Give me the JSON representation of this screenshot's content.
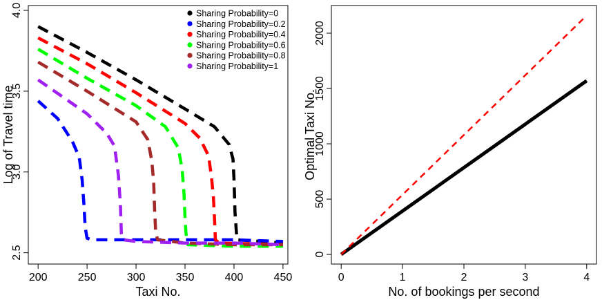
{
  "chart_data": [
    {
      "type": "line",
      "title": "",
      "xlabel": "Taxi No.",
      "ylabel": "Log of Travel time",
      "xlim": [
        190,
        455
      ],
      "ylim": [
        2.43,
        4.03
      ],
      "xticks": [
        200,
        250,
        300,
        350,
        400,
        450
      ],
      "yticks": [
        2.5,
        3.0,
        3.5,
        4.0
      ],
      "xtick_labels": [
        "200",
        "250",
        "300",
        "350",
        "400",
        "450"
      ],
      "ytick_labels": [
        "2.5",
        "3.0",
        "3.5",
        "4.0"
      ],
      "grid": false,
      "legend_position": "top-right",
      "line_style": "dashed",
      "series": [
        {
          "name": "Sharing Probability=0",
          "color": "#000000",
          "x": [
            200,
            250,
            300,
            350,
            380,
            395,
            399,
            400,
            401,
            403,
            450
          ],
          "y": [
            3.9,
            3.74,
            3.57,
            3.39,
            3.28,
            3.17,
            3.08,
            2.95,
            2.75,
            2.58,
            2.56
          ]
        },
        {
          "name": "Sharing Probability=0.2",
          "color": "#0000ff",
          "x": [
            200,
            220,
            235,
            242,
            245,
            247,
            248,
            250,
            255,
            300,
            350,
            400,
            450
          ],
          "y": [
            3.44,
            3.33,
            3.19,
            3.09,
            2.95,
            2.78,
            2.66,
            2.59,
            2.58,
            2.58,
            2.58,
            2.58,
            2.57
          ]
        },
        {
          "name": "Sharing Probability=0.4",
          "color": "#ff0000",
          "x": [
            200,
            250,
            300,
            350,
            365,
            374,
            377,
            379,
            380,
            381,
            385,
            450
          ],
          "y": [
            3.83,
            3.67,
            3.49,
            3.3,
            3.21,
            3.1,
            2.97,
            2.84,
            2.72,
            2.58,
            2.56,
            2.55
          ]
        },
        {
          "name": "Sharing Probability=0.6",
          "color": "#00ff00",
          "x": [
            200,
            250,
            300,
            330,
            343,
            347,
            349,
            350,
            351,
            353,
            400,
            450
          ],
          "y": [
            3.76,
            3.58,
            3.41,
            3.28,
            3.15,
            3.02,
            2.86,
            2.72,
            2.62,
            2.55,
            2.54,
            2.54
          ]
        },
        {
          "name": "Sharing Probability=0.8",
          "color": "#a52a2a",
          "x": [
            200,
            250,
            300,
            312,
            316,
            318,
            319,
            320,
            322,
            350,
            400,
            450
          ],
          "y": [
            3.68,
            3.5,
            3.31,
            3.2,
            3.07,
            2.94,
            2.76,
            2.63,
            2.58,
            2.56,
            2.55,
            2.55
          ]
        },
        {
          "name": "Sharing Probability=1",
          "color": "#a020f0",
          "x": [
            200,
            250,
            270,
            278,
            282,
            284,
            285,
            287,
            300,
            350,
            400,
            450
          ],
          "y": [
            3.57,
            3.36,
            3.24,
            3.16,
            2.98,
            2.8,
            2.62,
            2.58,
            2.57,
            2.56,
            2.56,
            2.55
          ]
        }
      ]
    },
    {
      "type": "line",
      "title": "",
      "xlabel": "No. of bookings per second",
      "ylabel": "Optimal Taxi No.",
      "xlim": [
        -0.16,
        4.16
      ],
      "ylim": [
        -87,
        2250
      ],
      "xticks": [
        0,
        1,
        2,
        3,
        4
      ],
      "yticks": [
        0,
        500,
        1000,
        1500,
        2000
      ],
      "xtick_labels": [
        "0",
        "1",
        "2",
        "3",
        "4"
      ],
      "ytick_labels": [
        "0",
        "500",
        "1000",
        "1500",
        "2000"
      ],
      "grid": false,
      "series": [
        {
          "color": "#000000",
          "line_style": "solid",
          "x": [
            0,
            4
          ],
          "y": [
            0,
            1570
          ]
        },
        {
          "color": "#ff0000",
          "line_style": "dashed",
          "x": [
            0,
            4
          ],
          "y": [
            0,
            2160
          ]
        }
      ]
    }
  ]
}
